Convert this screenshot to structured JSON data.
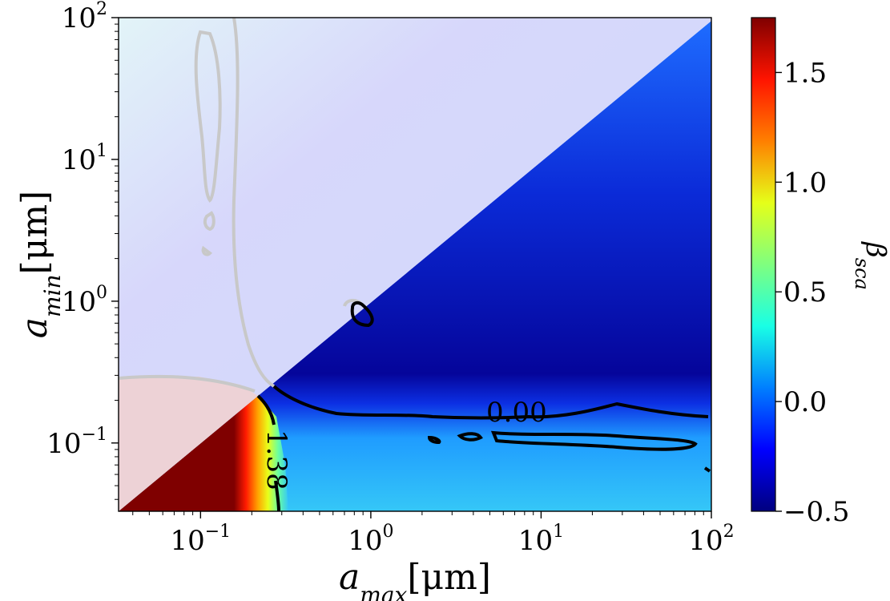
{
  "chart_data": {
    "type": "heatmap",
    "x_axis": {
      "label_main": "a",
      "label_sub": "max",
      "label_unit": "[μm]",
      "scale": "log",
      "range": [
        0.033,
        100
      ],
      "ticks": [
        {
          "value": 0.1,
          "base": "10",
          "exp": "−1"
        },
        {
          "value": 1,
          "base": "10",
          "exp": "0"
        },
        {
          "value": 10,
          "base": "10",
          "exp": "1"
        },
        {
          "value": 100,
          "base": "10",
          "exp": "2"
        }
      ]
    },
    "y_axis": {
      "label_main": "a",
      "label_sub": "min",
      "label_unit": "[μm]",
      "scale": "log",
      "range": [
        0.033,
        100
      ],
      "ticks": [
        {
          "value": 0.1,
          "base": "10",
          "exp": "−1"
        },
        {
          "value": 1,
          "base": "10",
          "exp": "0"
        },
        {
          "value": 10,
          "base": "10",
          "exp": "1"
        },
        {
          "value": 100,
          "base": "10",
          "exp": "2"
        }
      ]
    },
    "colorbar": {
      "label_main": "β",
      "label_sub": "sca",
      "range": [
        -0.5,
        1.75
      ],
      "colormap": [
        "#00007f",
        "#0000ff",
        "#007fff",
        "#19ffe5",
        "#7fff7f",
        "#e5ff19",
        "#ff7f00",
        "#ff1400",
        "#7f0000"
      ],
      "ticks": [
        {
          "value": -0.5,
          "label": "−0.5"
        },
        {
          "value": 0.0,
          "label": "0.0"
        },
        {
          "value": 0.5,
          "label": "0.5"
        },
        {
          "value": 1.0,
          "label": "1.0"
        },
        {
          "value": 1.5,
          "label": "1.5"
        }
      ]
    },
    "contours": [
      {
        "level": 0.0,
        "label": "0.00"
      },
      {
        "level": 1.38,
        "label": "1.38"
      }
    ],
    "notes_colors": {
      "masked_region": "#cfdcfb",
      "contour_line": "#000000",
      "masked_contour": "#c8c8c8"
    }
  }
}
